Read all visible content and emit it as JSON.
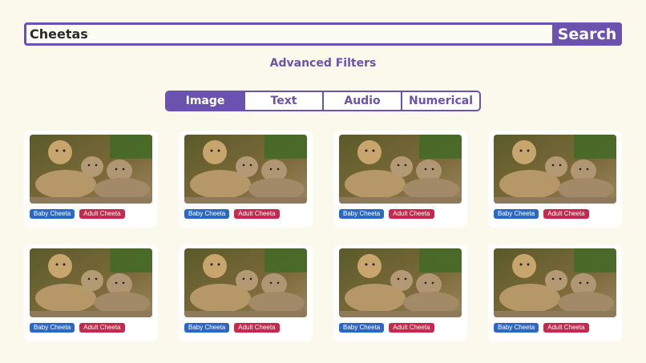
{
  "search": {
    "value": "Cheetas",
    "button_label": "Search"
  },
  "advanced_filters_label": "Advanced Filters",
  "tabs": [
    {
      "label": "Image",
      "active": true
    },
    {
      "label": "Text",
      "active": false
    },
    {
      "label": "Audio",
      "active": false
    },
    {
      "label": "Numerical",
      "active": false
    }
  ],
  "colors": {
    "accent": "#6b52ae",
    "badge_blue": "#2a68c8",
    "badge_red": "#c8284d",
    "background": "#fbf9ec"
  },
  "results": [
    {
      "image": "cheetah-family-photo",
      "tags": [
        "Baby Cheeta",
        "Adult Cheeta"
      ]
    },
    {
      "image": "cheetah-family-photo",
      "tags": [
        "Baby Cheeta",
        "Adult Cheeta"
      ]
    },
    {
      "image": "cheetah-family-photo",
      "tags": [
        "Baby Cheeta",
        "Adult Cheeta"
      ]
    },
    {
      "image": "cheetah-family-photo",
      "tags": [
        "Baby Cheeta",
        "Adult Cheeta"
      ]
    },
    {
      "image": "cheetah-family-photo",
      "tags": [
        "Baby Cheeta",
        "Adult Cheeta"
      ]
    },
    {
      "image": "cheetah-family-photo",
      "tags": [
        "Baby Cheeta",
        "Adult Cheeta"
      ]
    },
    {
      "image": "cheetah-family-photo",
      "tags": [
        "Baby Cheeta",
        "Adult Cheeta"
      ]
    },
    {
      "image": "cheetah-family-photo",
      "tags": [
        "Baby Cheeta",
        "Adult Cheeta"
      ]
    }
  ]
}
